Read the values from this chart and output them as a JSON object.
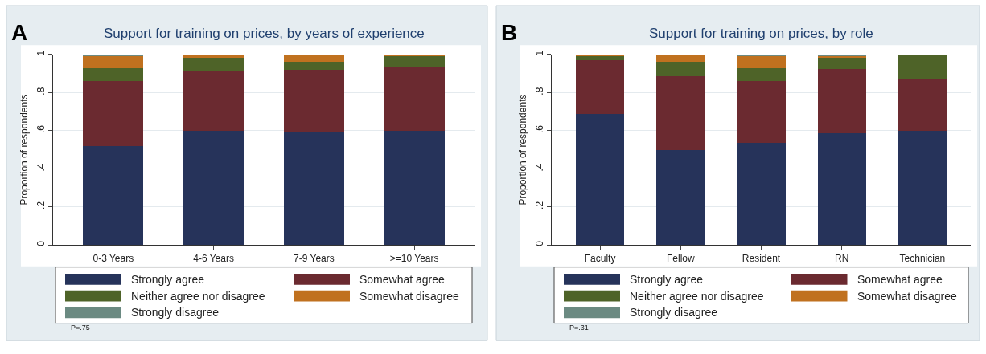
{
  "chart_data": [
    {
      "type": "bar",
      "stacked": true,
      "title": "Support for training on prices, by years of experience",
      "ylabel": "Proportion of respondents",
      "categories": [
        "0-3 Years",
        "4-6 Years",
        "7-9 Years",
        ">=10 Years"
      ],
      "series": [
        {
          "name": "Strongly agree",
          "color": "#26335a",
          "values": [
            0.52,
            0.6,
            0.59,
            0.6
          ]
        },
        {
          "name": "Somewhat agree",
          "color": "#6b2a30",
          "values": [
            0.34,
            0.31,
            0.33,
            0.335
          ]
        },
        {
          "name": "Neither agree nor disagree",
          "color": "#4e6328",
          "values": [
            0.07,
            0.075,
            0.04,
            0.06
          ]
        },
        {
          "name": "Somewhat disagree",
          "color": "#c0711f",
          "values": [
            0.06,
            0.015,
            0.04,
            0.005
          ]
        },
        {
          "name": "Strongly disagree",
          "color": "#6b8a82",
          "values": [
            0.01,
            0,
            0,
            0
          ]
        }
      ],
      "ylim": [
        0,
        1
      ],
      "yticks": [
        0,
        {
          "value": 0.2,
          "label": ".2"
        },
        {
          "value": 0.4,
          "label": ".4"
        },
        {
          "value": 0.6,
          "label": ".6"
        },
        {
          "value": 0.8,
          "label": ".8"
        },
        1
      ],
      "grid": "y",
      "legend": "bottom",
      "annotations": [
        "A",
        "P=.75"
      ]
    },
    {
      "type": "bar",
      "stacked": true,
      "title": "Support for training on prices, by role",
      "ylabel": "Proportion of respondents",
      "categories": [
        "Faculty",
        "Fellow",
        "Resident",
        "RN",
        "Technician"
      ],
      "series": [
        {
          "name": "Strongly agree",
          "color": "#26335a",
          "values": [
            0.69,
            0.5,
            0.535,
            0.585,
            0.6
          ]
        },
        {
          "name": "Somewhat agree",
          "color": "#6b2a30",
          "values": [
            0.28,
            0.385,
            0.325,
            0.34,
            0.27
          ]
        },
        {
          "name": "Neither agree nor disagree",
          "color": "#4e6328",
          "values": [
            0.02,
            0.075,
            0.07,
            0.06,
            0.13
          ]
        },
        {
          "name": "Somewhat disagree",
          "color": "#c0711f",
          "values": [
            0.01,
            0.04,
            0.065,
            0.01,
            0
          ]
        },
        {
          "name": "Strongly disagree",
          "color": "#6b8a82",
          "values": [
            0,
            0,
            0.005,
            0.005,
            0
          ]
        }
      ],
      "ylim": [
        0,
        1
      ],
      "yticks": [
        0,
        {
          "value": 0.2,
          "label": ".2"
        },
        {
          "value": 0.4,
          "label": ".4"
        },
        {
          "value": 0.6,
          "label": ".6"
        },
        {
          "value": 0.8,
          "label": ".8"
        },
        1
      ],
      "grid": "y",
      "legend": "bottom",
      "annotations": [
        "B",
        "P=.31"
      ]
    }
  ]
}
